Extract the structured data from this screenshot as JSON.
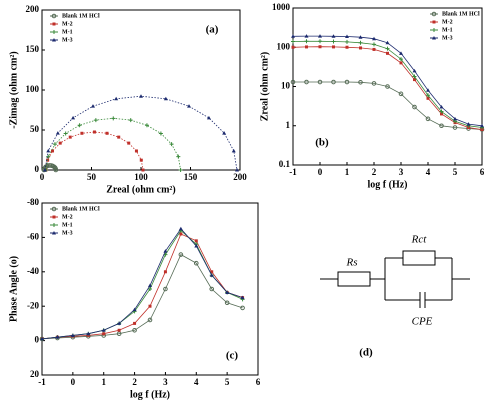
{
  "chart_data": [
    {
      "type": "scatter",
      "annotation": "(a)",
      "x_label": "Zreal (ohm cm²)",
      "y_label": "-Zimag (ohm cm²)",
      "xlim": [
        0,
        200
      ],
      "xticks": [
        0,
        50,
        100,
        150,
        200
      ],
      "ylim": [
        0,
        200
      ],
      "yticks": [
        0,
        50,
        100,
        150,
        200
      ],
      "legend": "upper left",
      "series": [
        {
          "name": "Blank 1M HCl",
          "color": "#556b55",
          "x": [
            2,
            2.2,
            3.2,
            3.8,
            5,
            6.4,
            8,
            9.6,
            11,
            12.2,
            13.2,
            13.8,
            14
          ],
          "values": [
            0,
            1.5,
            2.9,
            4,
            4.9,
            5.5,
            5.7,
            5.5,
            4.9,
            4,
            2.9,
            1.5,
            0
          ]
        },
        {
          "name": "M-2",
          "color": "#c0302a",
          "x": [
            4,
            5.7,
            10.6,
            18.4,
            28.5,
            40.3,
            53,
            65.7,
            77.5,
            87.6,
            95.4,
            100.3,
            102
          ],
          "values": [
            0,
            12.3,
            23.8,
            33.6,
            41.1,
            45.9,
            47.5,
            45.9,
            41.1,
            33.6,
            23.8,
            12.3,
            0
          ]
        },
        {
          "name": "M-1",
          "color": "#3a8a3a",
          "x": [
            4,
            6.3,
            13.1,
            23.9,
            38,
            54.4,
            72,
            89.6,
            106,
            120.1,
            130.9,
            137.7,
            140
          ],
          "values": [
            0,
            16.7,
            32.3,
            45.7,
            55.9,
            62.4,
            64.6,
            62.4,
            55.9,
            45.7,
            32.3,
            16.7,
            0
          ]
        },
        {
          "name": "M-3",
          "color": "#1c2a6e",
          "x": [
            3,
            6.3,
            16,
            31.4,
            51.5,
            74.9,
            100,
            125.1,
            148.5,
            168.6,
            184,
            193.7,
            197
          ],
          "values": [
            0,
            23.9,
            46.1,
            65.1,
            79.8,
            89,
            92.2,
            89,
            79.8,
            65.1,
            46.1,
            23.9,
            0
          ]
        }
      ]
    },
    {
      "type": "line",
      "annotation": "(b)",
      "x_label": "log f (Hz)",
      "y_label": "Zreal (ohm cm²)",
      "y_log": true,
      "xlim": [
        -1,
        6
      ],
      "xticks": [
        -1,
        0,
        1,
        2,
        3,
        4,
        5,
        6
      ],
      "ylim": [
        0.1,
        1000
      ],
      "yticks": [
        0.1,
        1,
        10,
        100,
        1000
      ],
      "legend": "upper right",
      "series": [
        {
          "name": "Blank 1M HCl",
          "color": "#556b55",
          "x": [
            -1,
            -0.5,
            0,
            0.5,
            1,
            1.5,
            2,
            2.5,
            3,
            3.5,
            4,
            4.5,
            5,
            5.5,
            6
          ],
          "values": [
            13,
            13,
            13,
            13,
            13,
            12.8,
            12,
            10,
            6.5,
            3,
            1.5,
            1,
            0.9,
            0.85,
            0.8
          ]
        },
        {
          "name": "M-2",
          "color": "#c0302a",
          "x": [
            -1,
            -0.5,
            0,
            0.5,
            1,
            1.5,
            2,
            2.5,
            3,
            3.5,
            4,
            4.5,
            5,
            5.5,
            6
          ],
          "values": [
            100,
            102,
            103,
            102,
            100,
            96,
            88,
            70,
            40,
            15,
            5,
            2,
            1.2,
            0.9,
            0.8
          ]
        },
        {
          "name": "M-1",
          "color": "#3a8a3a",
          "x": [
            -1,
            -0.5,
            0,
            0.5,
            1,
            1.5,
            2,
            2.5,
            3,
            3.5,
            4,
            4.5,
            5,
            5.5,
            6
          ],
          "values": [
            140,
            142,
            142,
            140,
            137,
            130,
            118,
            92,
            50,
            18,
            6,
            2.3,
            1.3,
            1,
            0.9
          ]
        },
        {
          "name": "M-3",
          "color": "#1c2a6e",
          "x": [
            -1,
            -0.5,
            0,
            0.5,
            1,
            1.5,
            2,
            2.5,
            3,
            3.5,
            4,
            4.5,
            5,
            5.5,
            6
          ],
          "values": [
            190,
            192,
            192,
            190,
            188,
            180,
            165,
            130,
            70,
            25,
            8,
            3,
            1.5,
            1.1,
            1
          ]
        }
      ]
    },
    {
      "type": "line",
      "annotation": "(c)",
      "x_label": "log f (Hz)",
      "y_label": "Phase Angle (o)",
      "xlim": [
        -1,
        6
      ],
      "xticks": [
        -1,
        0,
        1,
        2,
        3,
        4,
        5,
        6
      ],
      "ylim": [
        20,
        -80
      ],
      "yticks": [
        -80,
        -60,
        -40,
        -20,
        0,
        20
      ],
      "legend": "upper left",
      "series": [
        {
          "name": "Blank 1M HCl",
          "color": "#556b55",
          "x": [
            -1,
            -0.5,
            0,
            0.5,
            1,
            1.5,
            2,
            2.5,
            3,
            3.5,
            4,
            4.5,
            5,
            5.5
          ],
          "values": [
            -1,
            -1.5,
            -2,
            -2.5,
            -3,
            -4,
            -6,
            -12,
            -30,
            -50,
            -45,
            -30,
            -22,
            -19
          ]
        },
        {
          "name": "M-2",
          "color": "#c0302a",
          "x": [
            -1,
            -0.5,
            0,
            0.5,
            1,
            1.5,
            2,
            2.5,
            3,
            3.5,
            4,
            4.5,
            5,
            5.5
          ],
          "values": [
            -1,
            -2,
            -2.5,
            -3,
            -4,
            -6,
            -10,
            -20,
            -40,
            -62,
            -58,
            -40,
            -28,
            -25
          ]
        },
        {
          "name": "M-1",
          "color": "#3a8a3a",
          "x": [
            -1,
            -0.5,
            0,
            0.5,
            1,
            1.5,
            2,
            2.5,
            3,
            3.5,
            4,
            4.5,
            5,
            5.5
          ],
          "values": [
            -1,
            -2,
            -3,
            -4,
            -6,
            -10,
            -17,
            -30,
            -50,
            -64,
            -56,
            -38,
            -28,
            -24
          ]
        },
        {
          "name": "M-3",
          "color": "#1c2a6e",
          "x": [
            -1,
            -0.5,
            0,
            0.5,
            1,
            1.5,
            2,
            2.5,
            3,
            3.5,
            4,
            4.5,
            5,
            5.5
          ],
          "values": [
            -1,
            -2,
            -3,
            -4,
            -6,
            -10,
            -18,
            -32,
            -52,
            -65,
            -55,
            -38,
            -28,
            -25
          ]
        }
      ]
    }
  ],
  "diagram": {
    "resistor_1": "Rs",
    "resistor_2": "Rct",
    "element": "CPE",
    "annotation": "(d)"
  }
}
